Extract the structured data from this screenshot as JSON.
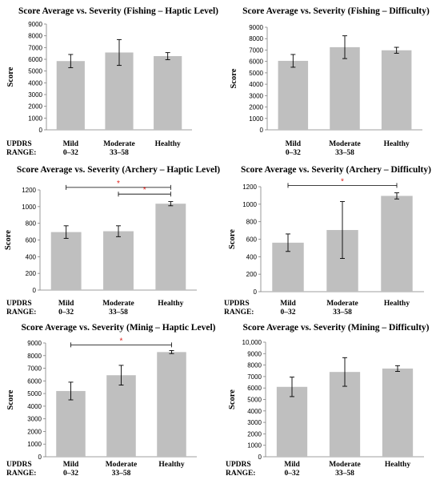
{
  "row_label": {
    "line1": "UPDRS",
    "line2": "RANGE:"
  },
  "colors": {
    "bar": "#bfbfbf",
    "axis": "#7f7f7f",
    "error": "#000000",
    "sig_line": "#000000",
    "sig_star": "#e0201b"
  },
  "chart_data": [
    {
      "type": "bar",
      "title": "Score Average vs. Severity (Fishing – Haptic Level)",
      "ylabel": "Score",
      "categories": [
        [
          "Mild",
          "0–32"
        ],
        [
          "Moderate",
          "33–58"
        ],
        [
          "Healthy",
          ""
        ]
      ],
      "values": [
        5850,
        6580,
        6270
      ],
      "errors": [
        560,
        1100,
        300
      ],
      "ylim": [
        0,
        9000
      ],
      "ytick_step": 1000,
      "ytick_labels": [
        "0",
        "1000",
        "2000",
        "3000",
        "4000",
        "5000",
        "6000",
        "7000",
        "8000",
        "9000"
      ],
      "significance": []
    },
    {
      "type": "bar",
      "title": "Score Average vs. Severity (Fishing – Difficulty)",
      "ylabel": "Score",
      "categories": [
        [
          "Mild",
          "0–32"
        ],
        [
          "Moderate",
          "33–58"
        ],
        [
          "Healthy",
          ""
        ]
      ],
      "values": [
        6050,
        7250,
        6980
      ],
      "errors": [
        560,
        1000,
        260
      ],
      "ylim": [
        0,
        9000
      ],
      "ytick_step": 1000,
      "ytick_labels": [
        "0",
        "1000",
        "2000",
        "3000",
        "4000",
        "5000",
        "6000",
        "7000",
        "8000",
        "9000"
      ],
      "significance": []
    },
    {
      "type": "bar",
      "title": "Score Average vs. Severity (Archery – Haptic Level)",
      "ylabel": "Score",
      "categories": [
        [
          "Mild",
          "0–32"
        ],
        [
          "Moderate",
          "33–58"
        ],
        [
          "Healthy",
          ""
        ]
      ],
      "values": [
        695,
        705,
        1035
      ],
      "errors": [
        75,
        65,
        25
      ],
      "ylim": [
        0,
        1200
      ],
      "ytick_step": 200,
      "ytick_labels": [
        "0",
        "200",
        "400",
        "600",
        "800",
        "1000",
        "1200"
      ],
      "significance": [
        {
          "from": 0,
          "to": 2,
          "y": 1230,
          "label": "*"
        },
        {
          "from": 1,
          "to": 2,
          "y": 1150,
          "label": "*"
        }
      ]
    },
    {
      "type": "bar",
      "title": "Score Average vs. Severity (Archery – Difficulty)",
      "ylabel": "Score",
      "categories": [
        [
          "Mild",
          "0–32"
        ],
        [
          "Moderate",
          "33–58"
        ],
        [
          "Healthy",
          ""
        ]
      ],
      "values": [
        560,
        705,
        1095
      ],
      "errors": [
        100,
        325,
        35
      ],
      "ylim": [
        0,
        1200
      ],
      "ytick_step": 200,
      "ytick_labels": [
        "0",
        "200",
        "400",
        "600",
        "800",
        "1000",
        "1200"
      ],
      "significance": [
        {
          "from": 0,
          "to": 2,
          "y": 1215,
          "label": "*"
        }
      ]
    },
    {
      "type": "bar",
      "title": "Score Average vs. Severity (Minig – Haptic Level)",
      "ylabel": "Score",
      "categories": [
        [
          "Mild",
          "0–32"
        ],
        [
          "Moderate",
          "33–58"
        ],
        [
          "Healthy",
          ""
        ]
      ],
      "values": [
        5200,
        6450,
        8280
      ],
      "errors": [
        700,
        780,
        120
      ],
      "ylim": [
        0,
        9000
      ],
      "ytick_step": 1000,
      "ytick_labels": [
        "0",
        "1000",
        "2000",
        "3000",
        "4000",
        "5000",
        "6000",
        "7000",
        "8000",
        "9000"
      ],
      "significance": [
        {
          "from": 0,
          "to": 2,
          "y": 8850,
          "label": "*"
        }
      ]
    },
    {
      "type": "bar",
      "title": "Score Average vs. Severity (Mining – Difficulty)",
      "ylabel": "Score",
      "categories": [
        [
          "Mild",
          "0–32"
        ],
        [
          "Moderate",
          "33–58"
        ],
        [
          "Healthy",
          ""
        ]
      ],
      "values": [
        6100,
        7400,
        7700
      ],
      "errors": [
        850,
        1250,
        250
      ],
      "ylim": [
        0,
        10000
      ],
      "ytick_step": 1000,
      "ytick_labels": [
        "0",
        "1000",
        "2000",
        "3000",
        "4000",
        "5000",
        "6000",
        "7000",
        "8000",
        "9000",
        "10,000"
      ],
      "significance": []
    }
  ]
}
